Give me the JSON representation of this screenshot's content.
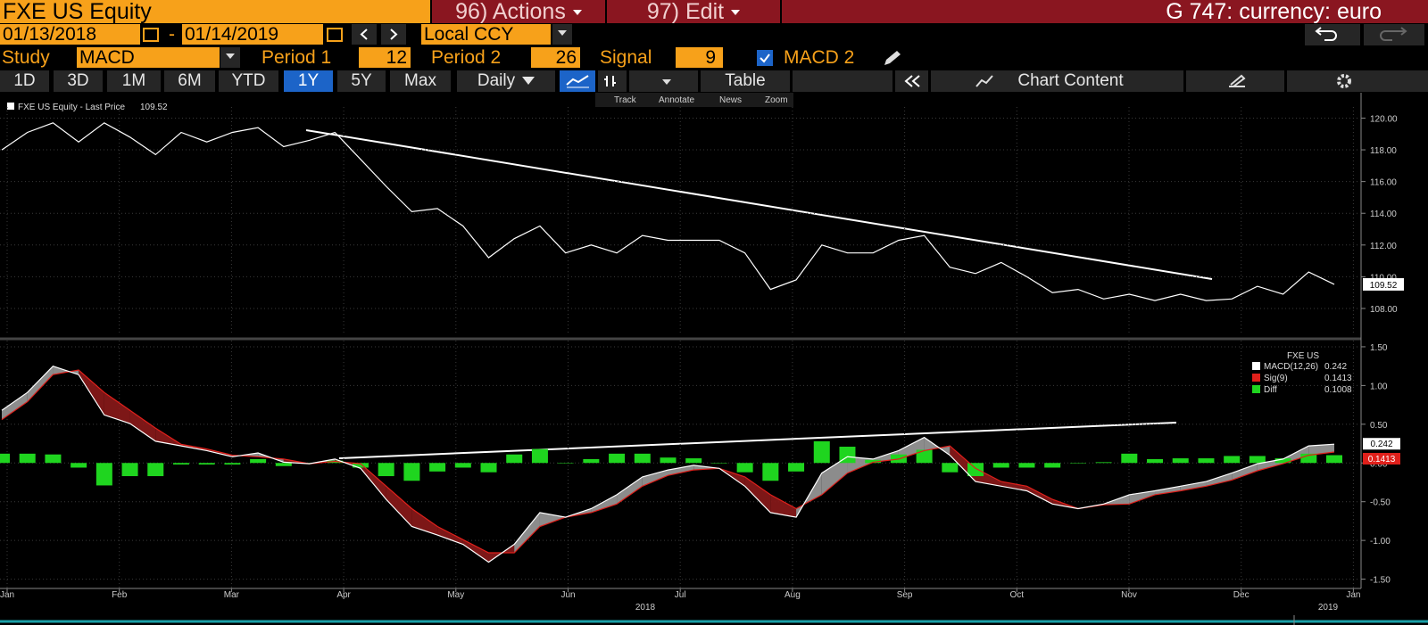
{
  "header": {
    "security": "FXE US Equity",
    "actions": "96) Actions",
    "edit": "97) Edit",
    "function": "G 747: currency: euro"
  },
  "controls": {
    "start_date": "01/13/2018",
    "date_separator": "-",
    "end_date": "01/14/2019",
    "currency": "Local CCY",
    "study_label": "Study",
    "study": "MACD",
    "period1_label": "Period 1",
    "period1": 12,
    "period2_label": "Period 2",
    "period2": 26,
    "signal_label": "Signal",
    "signal": 9,
    "macd2": "MACD 2"
  },
  "toolbar": {
    "ranges": [
      "1D",
      "3D",
      "1M",
      "6M",
      "YTD",
      "1Y",
      "5Y",
      "Max"
    ],
    "selected_range": "1Y",
    "frequency": "Daily",
    "table": "Table",
    "chart_content": "Chart Content",
    "tools": [
      "Track",
      "Annotate",
      "News",
      "Zoom"
    ]
  },
  "chart_data": [
    {
      "type": "line",
      "legend": "FXE US Equity - Last Price",
      "color": "#ffffff",
      "values": [
        118.0,
        119.1,
        119.7,
        118.5,
        119.7,
        118.8,
        117.7,
        119.1,
        118.5,
        119.1,
        119.4,
        118.2,
        118.6,
        119.1,
        117.4,
        115.7,
        114.1,
        114.3,
        113.2,
        111.2,
        112.4,
        113.2,
        111.5,
        112.0,
        111.5,
        112.6,
        112.3,
        112.3,
        112.3,
        111.5,
        109.2,
        109.8,
        112.0,
        111.5,
        111.5,
        112.3,
        112.6,
        110.6,
        110.2,
        110.9,
        110.0,
        109.0,
        109.2,
        108.6,
        108.9,
        108.5,
        108.9,
        108.5,
        108.6,
        109.4,
        108.9,
        110.3,
        109.52
      ],
      "ylim": [
        106.2,
        121.6
      ],
      "yticks": [
        {
          "value": 108,
          "label": "108.00"
        },
        {
          "value": 110,
          "label": "110.00"
        },
        {
          "value": 112,
          "label": "112.00"
        },
        {
          "value": 114,
          "label": "114.00"
        },
        {
          "value": 116,
          "label": "116.00"
        },
        {
          "value": 118,
          "label": "118.00"
        },
        {
          "value": 120,
          "label": "120.00"
        }
      ],
      "grid": true
    },
    {
      "type": "macd",
      "title": "FXE US",
      "series": [
        {
          "name": "MACD(12,26)",
          "color": "#ffffff",
          "values": [
            0.68,
            0.91,
            1.25,
            1.14,
            0.62,
            0.51,
            0.28,
            0.22,
            0.16,
            0.08,
            0.13,
            0.01,
            -0.01,
            0.05,
            -0.07,
            -0.47,
            -0.82,
            -0.93,
            -1.05,
            -1.28,
            -1.05,
            -0.64,
            -0.7,
            -0.59,
            -0.41,
            -0.18,
            -0.09,
            -0.03,
            -0.07,
            -0.3,
            -0.64,
            -0.7,
            -0.13,
            0.08,
            0.05,
            0.16,
            0.33,
            0.1,
            -0.24,
            -0.3,
            -0.36,
            -0.53,
            -0.59,
            -0.53,
            -0.41,
            -0.36,
            -0.3,
            -0.24,
            -0.13,
            -0.01,
            0.05,
            0.22,
            0.242
          ]
        },
        {
          "name": "Sig(9)",
          "color": "#e0201b",
          "values": [
            0.56,
            0.79,
            1.14,
            1.2,
            0.91,
            0.68,
            0.45,
            0.24,
            0.18,
            0.1,
            0.08,
            0.05,
            -0.01,
            0.02,
            -0.01,
            -0.3,
            -0.59,
            -0.82,
            -0.99,
            -1.16,
            -1.16,
            -0.82,
            -0.7,
            -0.64,
            -0.53,
            -0.3,
            -0.16,
            -0.09,
            -0.07,
            -0.18,
            -0.41,
            -0.59,
            -0.41,
            -0.13,
            0.01,
            0.05,
            0.16,
            0.22,
            -0.07,
            -0.24,
            -0.3,
            -0.47,
            -0.59,
            -0.54,
            -0.53,
            -0.41,
            -0.36,
            -0.3,
            -0.22,
            -0.1,
            -0.01,
            0.1,
            0.1413
          ]
        },
        {
          "name": "Diff",
          "color": "#1fd51f",
          "values": [
            0.12,
            0.12,
            0.11,
            -0.06,
            -0.29,
            -0.17,
            -0.17,
            -0.02,
            -0.02,
            -0.02,
            0.05,
            -0.04,
            0,
            0.03,
            -0.06,
            -0.17,
            -0.23,
            -0.11,
            -0.06,
            -0.12,
            0.11,
            0.18,
            0,
            0.05,
            0.12,
            0.12,
            0.07,
            0.06,
            0,
            -0.12,
            -0.23,
            -0.11,
            0.28,
            0.21,
            0.04,
            0.11,
            0.17,
            -0.12,
            -0.17,
            -0.06,
            -0.06,
            -0.06,
            0,
            0.01,
            0.12,
            0.05,
            0.06,
            0.06,
            0.09,
            0.09,
            0.06,
            0.12,
            0.1008
          ]
        }
      ],
      "ylim": [
        -1.62,
        1.58
      ],
      "yticks": [
        {
          "value": -1.5,
          "label": "-1.50"
        },
        {
          "value": -1,
          "label": "-1.00"
        },
        {
          "value": -0.5,
          "label": "-0.50"
        },
        {
          "value": 0,
          "label": "0.00"
        },
        {
          "value": 0.5,
          "label": "0.50"
        },
        {
          "value": 1,
          "label": "1.00"
        },
        {
          "value": 1.5,
          "label": "1.50"
        }
      ],
      "grid": true,
      "xticks": [
        "Jan",
        "Feb",
        "Mar",
        "Apr",
        "May",
        "Jun",
        "Jul",
        "Aug",
        "Sep",
        "Oct",
        "Nov",
        "Dec",
        "Jan"
      ],
      "year_labels": [
        "2018",
        "2019"
      ]
    }
  ]
}
